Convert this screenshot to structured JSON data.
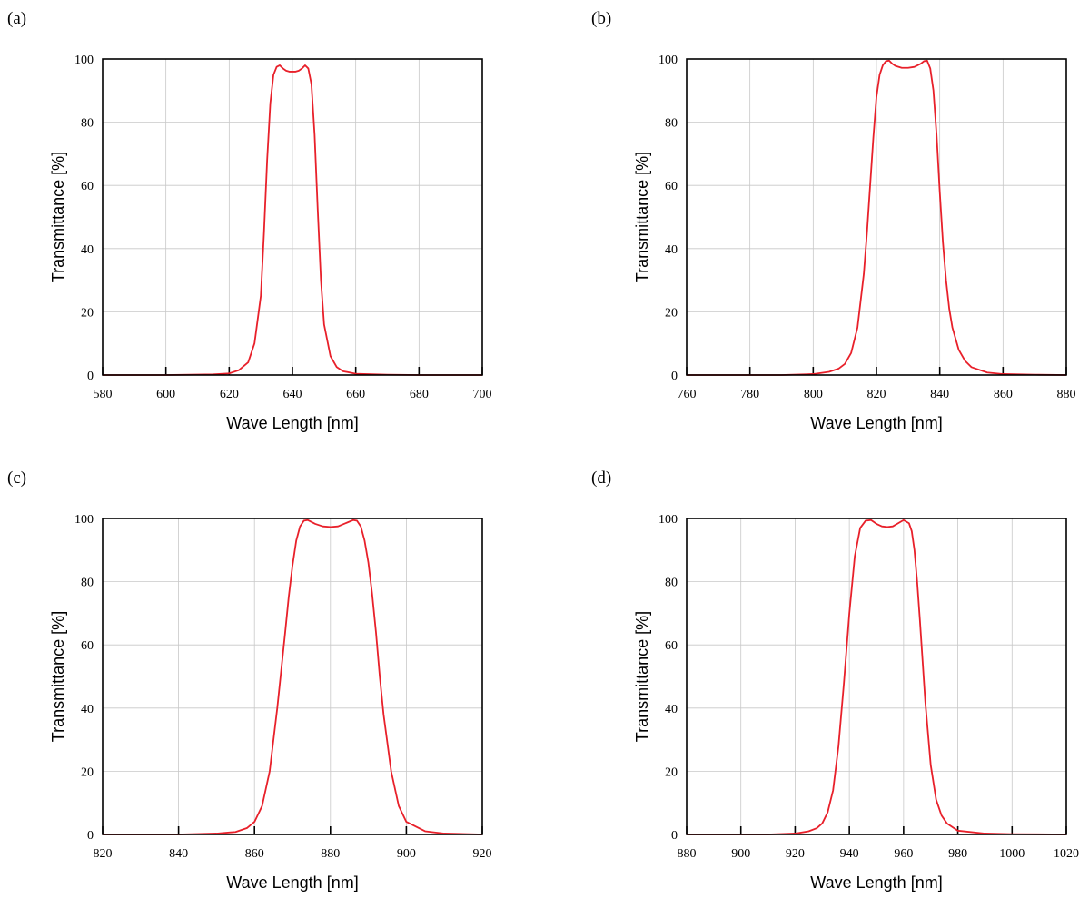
{
  "chart_data": [
    {
      "type": "line",
      "panel_label": "(a)",
      "xlabel": "Wave Length [nm]",
      "ylabel": "Transmittance [%]",
      "xlim": [
        580,
        700
      ],
      "ylim": [
        0,
        100
      ],
      "x_ticks": [
        580,
        600,
        620,
        640,
        660,
        680,
        700
      ],
      "y_ticks": [
        0,
        20,
        40,
        60,
        80,
        100
      ],
      "grid": true,
      "color": "#e8202a",
      "series": [
        {
          "x": [
            580,
            600,
            615,
            620,
            623,
            626,
            628,
            630,
            631,
            632,
            633,
            634,
            635,
            636,
            637,
            638,
            639,
            640,
            641,
            642,
            643,
            644,
            645,
            646,
            647,
            648,
            649,
            650,
            652,
            654,
            656,
            660,
            670,
            680,
            700
          ],
          "y": [
            0,
            0,
            0.2,
            0.5,
            1.5,
            4,
            10,
            25,
            45,
            68,
            86,
            95,
            97.5,
            98,
            97,
            96.3,
            96,
            96,
            96,
            96.3,
            97,
            98,
            97,
            92,
            76,
            52,
            30,
            16,
            6,
            2.5,
            1.2,
            0.4,
            0.1,
            0,
            0
          ]
        }
      ]
    },
    {
      "type": "line",
      "panel_label": "(b)",
      "xlabel": "Wave Length [nm]",
      "ylabel": "Transmittance [%]",
      "xlim": [
        760,
        880
      ],
      "ylim": [
        0,
        100
      ],
      "x_ticks": [
        760,
        780,
        800,
        820,
        840,
        860,
        880
      ],
      "y_ticks": [
        0,
        20,
        40,
        60,
        80,
        100
      ],
      "grid": true,
      "color": "#e8202a",
      "series": [
        {
          "x": [
            760,
            790,
            800,
            805,
            808,
            810,
            812,
            814,
            816,
            817,
            818,
            819,
            820,
            821,
            822,
            823,
            824,
            825,
            826,
            828,
            830,
            832,
            834,
            835,
            836,
            837,
            838,
            839,
            840,
            841,
            842,
            843,
            844,
            846,
            848,
            850,
            855,
            860,
            870,
            880
          ],
          "y": [
            0,
            0,
            0.3,
            1,
            2,
            3.5,
            7,
            15,
            32,
            45,
            60,
            75,
            88,
            95,
            98,
            99.3,
            99.5,
            98.5,
            97.8,
            97.2,
            97.2,
            97.5,
            98.5,
            99.3,
            99.5,
            97,
            90,
            76,
            58,
            42,
            30,
            21,
            15,
            8,
            4.5,
            2.5,
            0.8,
            0.3,
            0.1,
            0
          ]
        }
      ]
    },
    {
      "type": "line",
      "panel_label": "(c)",
      "xlabel": "Wave Length [nm]",
      "ylabel": "Transmittance [%]",
      "xlim": [
        820,
        920
      ],
      "ylim": [
        0,
        100
      ],
      "x_ticks": [
        820,
        840,
        860,
        880,
        900,
        920
      ],
      "y_ticks": [
        0,
        20,
        40,
        60,
        80,
        100
      ],
      "grid": true,
      "color": "#e8202a",
      "series": [
        {
          "x": [
            820,
            840,
            850,
            855,
            858,
            860,
            862,
            864,
            866,
            868,
            869,
            870,
            871,
            872,
            873,
            874,
            876,
            878,
            880,
            882,
            884,
            886,
            887,
            888,
            889,
            890,
            891,
            892,
            893,
            894,
            896,
            898,
            900,
            905,
            910,
            920
          ],
          "y": [
            0,
            0,
            0.3,
            0.8,
            2,
            4,
            9,
            20,
            40,
            63,
            75,
            85,
            93,
            97.5,
            99.3,
            99.5,
            98.3,
            97.5,
            97.3,
            97.5,
            98.5,
            99.5,
            99.3,
            97.5,
            93,
            86,
            76,
            64,
            50,
            38,
            20,
            9,
            4,
            1,
            0.3,
            0
          ]
        }
      ]
    },
    {
      "type": "line",
      "panel_label": "(d)",
      "xlabel": "Wave Length [nm]",
      "ylabel": "Transmittance [%]",
      "xlim": [
        880,
        1020
      ],
      "ylim": [
        0,
        100
      ],
      "x_ticks": [
        880,
        900,
        920,
        940,
        960,
        980,
        1000,
        1020
      ],
      "y_ticks": [
        0,
        20,
        40,
        60,
        80,
        100
      ],
      "grid": true,
      "color": "#e8202a",
      "series": [
        {
          "x": [
            880,
            910,
            920,
            925,
            928,
            930,
            932,
            934,
            936,
            938,
            940,
            942,
            944,
            946,
            948,
            950,
            952,
            954,
            956,
            958,
            960,
            962,
            963,
            964,
            965,
            966,
            967,
            968,
            970,
            972,
            974,
            976,
            980,
            990,
            1000,
            1020
          ],
          "y": [
            0,
            0,
            0.3,
            1,
            2,
            3.5,
            7,
            14,
            28,
            48,
            70,
            88,
            97,
            99.3,
            99.5,
            98.3,
            97.5,
            97.3,
            97.5,
            98.5,
            99.5,
            98.5,
            96,
            90,
            80,
            68,
            55,
            42,
            22,
            11,
            6,
            3.5,
            1.2,
            0.3,
            0.1,
            0
          ]
        }
      ]
    }
  ]
}
